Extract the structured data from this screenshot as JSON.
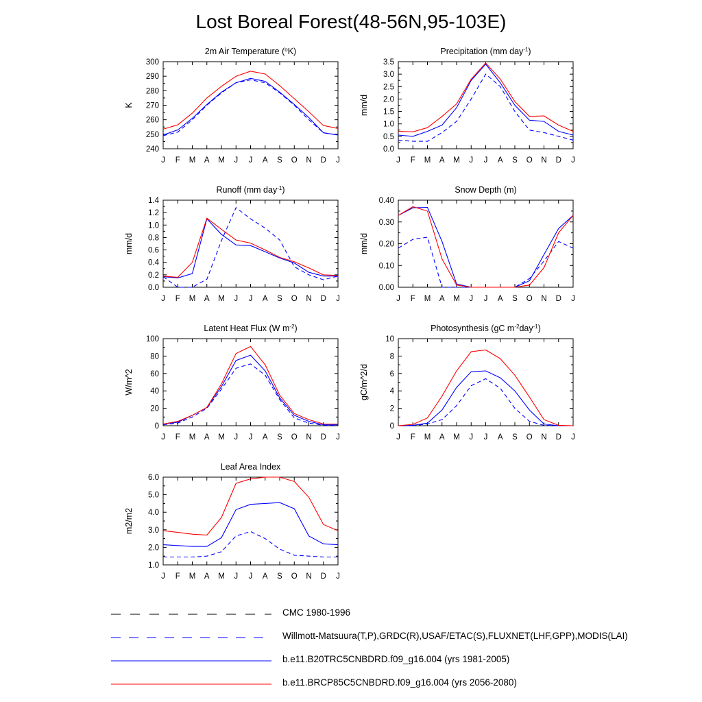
{
  "title": "Lost Boreal Forest(48-56N,95-103E)",
  "months": [
    "J",
    "F",
    "M",
    "A",
    "M",
    "J",
    "J",
    "A",
    "S",
    "O",
    "N",
    "D",
    "J"
  ],
  "colors": {
    "blue": "#0000ff",
    "red": "#ff0000",
    "black": "#000000"
  },
  "chart_data": [
    {
      "type": "line",
      "title": "2m Air Temperature (°K)",
      "title_parts": [
        "2m Air Temperature (",
        "o",
        "K)"
      ],
      "ylabel": "K",
      "ylim": [
        240,
        300
      ],
      "yticks": [
        "240",
        "250",
        "260",
        "270",
        "280",
        "290",
        "300"
      ],
      "categories": [
        "J",
        "F",
        "M",
        "A",
        "M",
        "J",
        "J",
        "A",
        "S",
        "O",
        "N",
        "D",
        "J"
      ],
      "series": [
        {
          "name": "Willmott-Matsuura",
          "style": "dashed",
          "color": "#0000ff",
          "values": [
            249,
            251.5,
            260,
            270,
            278.5,
            285.5,
            287.5,
            285.5,
            278.5,
            270,
            260,
            251,
            249.5
          ]
        },
        {
          "name": "b.e11.B20TRC5CNBDRD.f09_g16.004",
          "style": "solid",
          "color": "#0000ff",
          "values": [
            249.5,
            253,
            261,
            270.5,
            279,
            285.5,
            288.5,
            286.5,
            279,
            270.5,
            261.5,
            251,
            249.5
          ]
        },
        {
          "name": "b.e11.BRCP85C5CNBDRD.f09_g16.004",
          "style": "solid",
          "color": "#ff0000",
          "values": [
            253.5,
            256.5,
            264.5,
            275,
            283,
            290,
            293.5,
            291.5,
            283.5,
            274.5,
            265.5,
            256,
            254
          ]
        }
      ]
    },
    {
      "type": "line",
      "title": "Precipitation (mm day-1)",
      "title_parts": [
        "Precipitation (mm day",
        "-1",
        ")"
      ],
      "ylabel": "mm/d",
      "ylim": [
        0,
        3.5
      ],
      "yticks": [
        "0.0",
        "0.5",
        "1.0",
        "1.5",
        "2.0",
        "2.5",
        "3.0",
        "3.5"
      ],
      "categories": [
        "J",
        "F",
        "M",
        "A",
        "M",
        "J",
        "J",
        "A",
        "S",
        "O",
        "N",
        "D",
        "J"
      ],
      "series": [
        {
          "name": "Willmott-Matsuura",
          "style": "dashed",
          "color": "#0000ff",
          "values": [
            0.35,
            0.3,
            0.3,
            0.65,
            1.1,
            2.0,
            3.0,
            2.5,
            1.5,
            0.75,
            0.65,
            0.5,
            0.35
          ]
        },
        {
          "name": "b.e11.B20TRC5CNBDRD.f09_g16.004",
          "style": "solid",
          "color": "#0000ff",
          "values": [
            0.55,
            0.5,
            0.7,
            0.95,
            1.65,
            2.75,
            3.4,
            2.65,
            1.75,
            1.15,
            1.1,
            0.7,
            0.55
          ]
        },
        {
          "name": "b.e11.BRCP85C5CNBDRD.f09_g16.004",
          "style": "solid",
          "color": "#ff0000",
          "values": [
            0.7,
            0.68,
            0.85,
            1.3,
            1.8,
            2.8,
            3.45,
            2.8,
            1.9,
            1.3,
            1.32,
            0.95,
            0.7
          ]
        }
      ]
    },
    {
      "type": "line",
      "title": "Runoff (mm day-1)",
      "title_parts": [
        "Runoff (mm day",
        "-1",
        ")"
      ],
      "ylabel": "mm/d",
      "ylim": [
        0,
        1.4
      ],
      "yticks": [
        "0.0",
        "0.2",
        "0.4",
        "0.6",
        "0.8",
        "1.0",
        "1.2",
        "1.4"
      ],
      "categories": [
        "J",
        "F",
        "M",
        "A",
        "M",
        "J",
        "J",
        "A",
        "S",
        "O",
        "N",
        "D",
        "J"
      ],
      "series": [
        {
          "name": "GRDC",
          "style": "dashed",
          "color": "#0000ff",
          "values": [
            0.17,
            0.0,
            0.0,
            0.13,
            0.75,
            1.28,
            1.1,
            0.95,
            0.76,
            0.33,
            0.2,
            0.12,
            0.18
          ]
        },
        {
          "name": "b.e11.B20TRC5CNBDRD.f09_g16.004",
          "style": "solid",
          "color": "#0000ff",
          "values": [
            0.17,
            0.15,
            0.22,
            1.1,
            0.85,
            0.68,
            0.67,
            0.57,
            0.47,
            0.39,
            0.24,
            0.18,
            0.18
          ]
        },
        {
          "name": "b.e11.BRCP85C5CNBDRD.f09_g16.004",
          "style": "solid",
          "color": "#ff0000",
          "values": [
            0.18,
            0.16,
            0.4,
            1.11,
            0.93,
            0.76,
            0.71,
            0.6,
            0.48,
            0.41,
            0.31,
            0.2,
            0.19
          ]
        }
      ]
    },
    {
      "type": "line",
      "title": "Snow Depth (m)",
      "title_parts": [
        "Snow Depth (m)",
        "",
        ""
      ],
      "ylabel": "mm/d",
      "ylim": [
        0,
        0.4
      ],
      "yticks": [
        "0.00",
        "0.10",
        "0.20",
        "0.30",
        "0.40"
      ],
      "categories": [
        "J",
        "F",
        "M",
        "A",
        "M",
        "J",
        "J",
        "A",
        "S",
        "O",
        "N",
        "D",
        "J"
      ],
      "series": [
        {
          "name": "CMC 1980-1996",
          "style": "longdash",
          "color": "#000000",
          "values": [
            0,
            0,
            0,
            0,
            0,
            0,
            0,
            0,
            0,
            0,
            0,
            0,
            0
          ]
        },
        {
          "name": "USAF/ETAC",
          "style": "dashed",
          "color": "#0000ff",
          "values": [
            0.18,
            0.22,
            0.23,
            0.0,
            0.0,
            0.0,
            0.0,
            0.0,
            0.0,
            0.04,
            0.12,
            0.21,
            0.18
          ]
        },
        {
          "name": "b.e11.B20TRC5CNBDRD.f09_g16.004",
          "style": "solid",
          "color": "#0000ff",
          "values": [
            0.33,
            0.365,
            0.367,
            0.21,
            0.015,
            0.0,
            0.0,
            0.0,
            0.0,
            0.03,
            0.15,
            0.27,
            0.33
          ]
        },
        {
          "name": "b.e11.BRCP85C5CNBDRD.f09_g16.004",
          "style": "solid",
          "color": "#ff0000",
          "values": [
            0.33,
            0.37,
            0.35,
            0.13,
            0.01,
            0.0,
            0.0,
            0.0,
            0.0,
            0.01,
            0.09,
            0.25,
            0.33
          ]
        }
      ]
    },
    {
      "type": "line",
      "title": "Latent Heat Flux (W m-2)",
      "title_parts": [
        "Latent Heat Flux (W m",
        "-2",
        ")"
      ],
      "ylabel": "W/m^2",
      "ylim": [
        0,
        100
      ],
      "yticks": [
        "0",
        "20",
        "40",
        "60",
        "80",
        "100"
      ],
      "categories": [
        "J",
        "F",
        "M",
        "A",
        "M",
        "J",
        "J",
        "A",
        "S",
        "O",
        "N",
        "D",
        "J"
      ],
      "series": [
        {
          "name": "FLUXNET",
          "style": "dashed",
          "color": "#0000ff",
          "values": [
            1,
            3,
            10,
            20,
            42,
            66,
            71,
            58,
            30,
            9,
            3,
            0.5,
            0.5
          ]
        },
        {
          "name": "b.e11.B20TRC5CNBDRD.f09_g16.004",
          "style": "solid",
          "color": "#0000ff",
          "values": [
            2,
            4,
            12,
            21,
            45,
            75,
            81,
            63,
            32,
            12,
            5,
            1,
            1
          ]
        },
        {
          "name": "b.e11.BRCP85C5CNBDRD.f09_g16.004",
          "style": "solid",
          "color": "#ff0000",
          "values": [
            2,
            5,
            12,
            21,
            48,
            83,
            91,
            70,
            35,
            14,
            7,
            2,
            2
          ]
        }
      ]
    },
    {
      "type": "line",
      "title": "Photosynthesis (gC m-2day-1)",
      "title_parts": [
        "Photosynthesis (gC m",
        "-2",
        "day",
        "-1",
        ")"
      ],
      "ylabel": "gC/m^2/d",
      "ylim": [
        0,
        10
      ],
      "yticks": [
        "0",
        "2",
        "4",
        "6",
        "8",
        "10"
      ],
      "categories": [
        "J",
        "F",
        "M",
        "A",
        "M",
        "J",
        "J",
        "A",
        "S",
        "O",
        "N",
        "D",
        "J"
      ],
      "series": [
        {
          "name": "FLUXNET(GPP)",
          "style": "dashed",
          "color": "#0000ff",
          "values": [
            0,
            0,
            0.2,
            0.7,
            2.3,
            4.6,
            5.4,
            4.3,
            2.0,
            0.5,
            0.05,
            0,
            0
          ]
        },
        {
          "name": "b.e11.B20TRC5CNBDRD.f09_g16.004",
          "style": "solid",
          "color": "#0000ff",
          "values": [
            0,
            0.05,
            0.3,
            1.8,
            4.4,
            6.2,
            6.3,
            5.5,
            4.0,
            1.8,
            0.2,
            0,
            0
          ]
        },
        {
          "name": "b.e11.BRCP85C5CNBDRD.f09_g16.004",
          "style": "solid",
          "color": "#ff0000",
          "values": [
            0,
            0.15,
            0.9,
            3.4,
            6.3,
            8.5,
            8.7,
            7.7,
            5.8,
            3.3,
            0.7,
            0.05,
            0
          ]
        }
      ]
    },
    {
      "type": "line",
      "title": "Leaf Area Index",
      "title_parts": [
        "Leaf Area Index",
        "",
        ""
      ],
      "ylabel": "m2/m2",
      "ylim": [
        1,
        6
      ],
      "yticks": [
        "1.0",
        "2.0",
        "3.0",
        "4.0",
        "5.0",
        "6.0"
      ],
      "categories": [
        "J",
        "F",
        "M",
        "A",
        "M",
        "J",
        "J",
        "A",
        "S",
        "O",
        "N",
        "D",
        "J"
      ],
      "series": [
        {
          "name": "MODIS(LAI)",
          "style": "dashed",
          "color": "#0000ff",
          "values": [
            1.45,
            1.45,
            1.45,
            1.5,
            1.75,
            2.65,
            2.9,
            2.5,
            1.9,
            1.55,
            1.5,
            1.45,
            1.45
          ]
        },
        {
          "name": "b.e11.B20TRC5CNBDRD.f09_g16.004",
          "style": "solid",
          "color": "#0000ff",
          "values": [
            2.15,
            2.1,
            2.05,
            2.05,
            2.55,
            4.15,
            4.45,
            4.5,
            4.55,
            4.2,
            2.65,
            2.2,
            2.15
          ]
        },
        {
          "name": "b.e11.BRCP85C5CNBDRD.f09_g16.004",
          "style": "solid",
          "color": "#ff0000",
          "values": [
            2.95,
            2.85,
            2.75,
            2.7,
            3.7,
            5.65,
            5.9,
            6.0,
            6.0,
            5.75,
            4.85,
            3.3,
            2.95
          ]
        }
      ]
    }
  ],
  "legend": [
    {
      "label": "CMC 1980-1996",
      "style": "longdash",
      "color": "#000000"
    },
    {
      "label": "Willmott-Matsuura(T,P),GRDC(R),USAF/ETAC(S),FLUXNET(LHF,GPP),MODIS(LAI)",
      "style": "dashed",
      "color": "#0000ff"
    },
    {
      "label": "b.e11.B20TRC5CNBDRD.f09_g16.004 (yrs 1981-2005)",
      "style": "solid",
      "color": "#0000ff"
    },
    {
      "label": "b.e11.BRCP85C5CNBDRD.f09_g16.004 (yrs 2056-2080)",
      "style": "solid",
      "color": "#ff0000"
    }
  ]
}
